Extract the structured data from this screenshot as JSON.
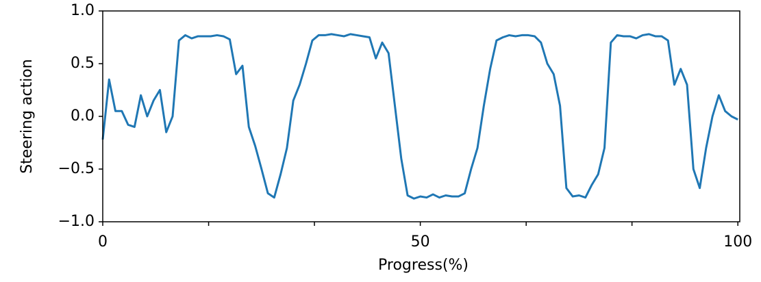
{
  "chart_data": {
    "type": "line",
    "x_label": "Progress(%)",
    "y_label": "Steering action",
    "x": [
      0,
      1,
      2,
      3,
      4,
      5,
      6,
      7,
      8,
      9,
      10,
      11,
      12,
      13,
      14,
      15,
      16,
      17,
      18,
      19,
      20,
      21,
      22,
      23,
      24,
      25,
      26,
      27,
      28,
      29,
      30,
      31,
      32,
      33,
      34,
      35,
      36,
      37,
      38,
      39,
      40,
      41,
      42,
      43,
      44,
      45,
      46,
      47,
      48,
      49,
      50,
      51,
      52,
      53,
      54,
      55,
      56,
      57,
      58,
      59,
      60,
      61,
      62,
      63,
      64,
      65,
      66,
      67,
      68,
      69,
      70,
      71,
      72,
      73,
      74,
      75,
      76,
      77,
      78,
      79,
      80,
      81,
      82,
      83,
      84,
      85,
      86,
      87,
      88,
      89,
      90,
      91,
      92,
      93,
      94,
      95,
      96,
      97,
      98,
      99,
      100
    ],
    "series": [
      {
        "color": "#1f77b4",
        "values": [
          -0.22,
          0.35,
          0.05,
          0.05,
          -0.08,
          -0.1,
          0.2,
          0.0,
          0.15,
          0.25,
          -0.15,
          0.0,
          0.72,
          0.77,
          0.74,
          0.76,
          0.76,
          0.76,
          0.77,
          0.76,
          0.73,
          0.4,
          0.48,
          -0.1,
          -0.28,
          -0.5,
          -0.73,
          -0.77,
          -0.55,
          -0.3,
          0.15,
          0.3,
          0.5,
          0.72,
          0.77,
          0.77,
          0.78,
          0.77,
          0.76,
          0.78,
          0.77,
          0.76,
          0.75,
          0.55,
          0.7,
          0.6,
          0.1,
          -0.4,
          -0.75,
          -0.78,
          -0.76,
          -0.77,
          -0.74,
          -0.77,
          -0.75,
          -0.76,
          -0.76,
          -0.73,
          -0.5,
          -0.3,
          0.1,
          0.45,
          0.72,
          0.75,
          0.77,
          0.76,
          0.77,
          0.77,
          0.76,
          0.7,
          0.5,
          0.4,
          0.1,
          -0.68,
          -0.76,
          -0.75,
          -0.77,
          -0.65,
          -0.55,
          -0.3,
          0.7,
          0.77,
          0.76,
          0.76,
          0.74,
          0.77,
          0.78,
          0.76,
          0.76,
          0.72,
          0.3,
          0.45,
          0.3,
          -0.5,
          -0.68,
          -0.3,
          0.0,
          0.2,
          0.05,
          0.0,
          -0.03
        ]
      }
    ],
    "xlim": [
      0,
      100.3
    ],
    "xticks": [
      0,
      50,
      100
    ],
    "xminor_ticks": [
      16.67,
      33.33,
      66.67,
      83.33
    ],
    "ylim": [
      -1,
      1
    ],
    "yticks": [
      {
        "value": -1,
        "label": "−1.0"
      },
      {
        "value": -0.5,
        "label": "−0.5"
      },
      {
        "value": 0,
        "label": "0.0"
      },
      {
        "value": 0.5,
        "label": "0.5"
      },
      {
        "value": 1,
        "label": "1.0"
      }
    ]
  }
}
